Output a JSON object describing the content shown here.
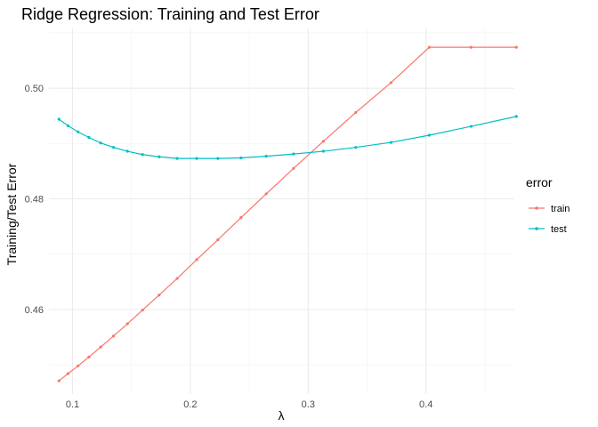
{
  "chart_data": {
    "type": "line",
    "title": "Ridge Regression: Training and Test Error",
    "xlabel": "λ",
    "ylabel": "Training/Test Error",
    "xlim": [
      0.08,
      0.475
    ],
    "ylim": [
      0.4447,
      0.5108
    ],
    "x_ticks": [
      0.1,
      0.2,
      0.3,
      0.4
    ],
    "x_tick_labels": [
      "0.1",
      "0.2",
      "0.3",
      "0.4"
    ],
    "y_ticks": [
      0.46,
      0.48,
      0.5
    ],
    "y_tick_labels": [
      "0.46",
      "0.48",
      "0.50"
    ],
    "grid": true,
    "legend": {
      "title": "error",
      "placement": "right"
    },
    "x": [
      0.0885,
      0.0962,
      0.1047,
      0.1139,
      0.1239,
      0.1348,
      0.1466,
      0.1595,
      0.1735,
      0.1888,
      0.2054,
      0.2234,
      0.243,
      0.2644,
      0.2876,
      0.3129,
      0.3404,
      0.3703,
      0.4028,
      0.4382,
      0.4767
    ],
    "series": [
      {
        "name": "train",
        "color": "#F8766D",
        "values": [
          0.4471,
          0.4484,
          0.4498,
          0.4514,
          0.4532,
          0.4552,
          0.4574,
          0.4599,
          0.4626,
          0.4656,
          0.469,
          0.4726,
          0.4766,
          0.4809,
          0.4855,
          0.4904,
          0.4956,
          0.501,
          0.5074,
          0.5074,
          0.5074
        ]
      },
      {
        "name": "test",
        "color": "#00BFC4",
        "values": [
          0.4944,
          0.4932,
          0.4921,
          0.4911,
          0.4901,
          0.4893,
          0.4886,
          0.488,
          0.4876,
          0.4873,
          0.4873,
          0.4873,
          0.4874,
          0.4877,
          0.4881,
          0.4886,
          0.4893,
          0.4902,
          0.4915,
          0.4931,
          0.4949
        ]
      }
    ]
  }
}
